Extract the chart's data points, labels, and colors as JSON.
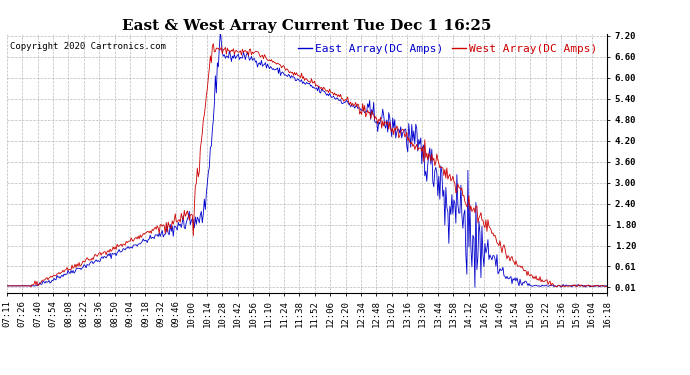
{
  "title": "East & West Array Current Tue Dec 1 16:25",
  "copyright": "Copyright 2020 Cartronics.com",
  "legend_east": "East Array(DC Amps)",
  "legend_west": "West Array(DC Amps)",
  "east_color": "#0000CC",
  "west_color": "#CC0000",
  "background_color": "#FFFFFF",
  "grid_color": "#AAAAAA",
  "yticks": [
    0.01,
    0.61,
    1.2,
    1.8,
    2.4,
    3.0,
    3.6,
    4.2,
    4.8,
    5.4,
    6.0,
    6.6,
    7.2
  ],
  "xticklabels": [
    "07:11",
    "07:26",
    "07:40",
    "07:54",
    "08:08",
    "08:22",
    "08:36",
    "08:50",
    "09:04",
    "09:18",
    "09:32",
    "09:46",
    "10:00",
    "10:14",
    "10:28",
    "10:42",
    "10:56",
    "11:10",
    "11:24",
    "11:38",
    "11:52",
    "12:06",
    "12:20",
    "12:34",
    "12:48",
    "13:02",
    "13:16",
    "13:30",
    "13:44",
    "13:58",
    "14:12",
    "14:26",
    "14:40",
    "14:54",
    "15:08",
    "15:22",
    "15:36",
    "15:50",
    "16:04",
    "16:18"
  ],
  "ylim_min": 0.01,
  "ylim_max": 7.2,
  "title_fontsize": 11,
  "axis_fontsize": 6.5,
  "legend_fontsize": 8,
  "copyright_fontsize": 6.5
}
